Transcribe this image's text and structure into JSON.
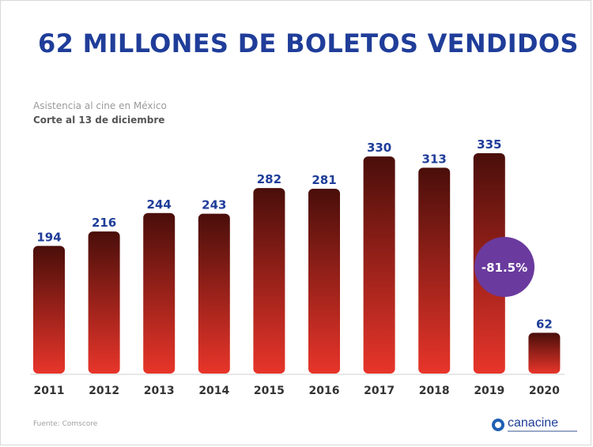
{
  "header": {
    "title": "62 MILLONES DE BOLETOS VENDIDOS",
    "subtitle": "Asistencia al cine en México",
    "subtitle2": "Corte al 13 de diciembre"
  },
  "footer": {
    "source": "Fuente: Comscore",
    "logo": "canacine"
  },
  "colors": {
    "title": "#1f3d99",
    "bar_top": "#4a0e0a",
    "bar_bottom": "#e8352a",
    "badge": "#6a3a9e",
    "label": "#1f3d99",
    "axis_text": "#333333"
  },
  "chart_data": {
    "type": "bar",
    "categories": [
      "2011",
      "2012",
      "2013",
      "2014",
      "2015",
      "2016",
      "2017",
      "2018",
      "2019",
      "2020"
    ],
    "values": [
      194,
      216,
      244,
      243,
      282,
      281,
      330,
      313,
      335,
      62
    ],
    "title": "62 MILLONES DE BOLETOS VENDIDOS",
    "subtitle": "Asistencia al cine en México",
    "note": "Corte al 13 de diciembre",
    "annotation": "-81.5%",
    "ylim": [
      0,
      335
    ],
    "grid": false,
    "legend": "none"
  }
}
